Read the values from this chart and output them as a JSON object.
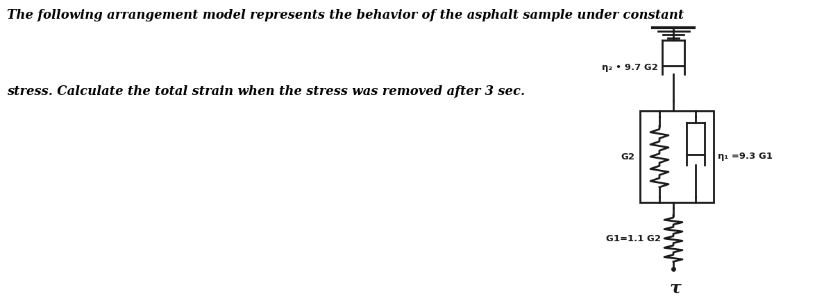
{
  "bg_color": "#ffffff",
  "text_color": "#000000",
  "title_line1": "The following arrangement model represents the behavior of the asphalt sample under constant",
  "title_line2": "stress. Calculate the total strain when the stress was removed after 3 sec.",
  "title_fontsize": 13.0,
  "tau_label": "τ",
  "spring1_label": "G1=1.1 G2",
  "spring2_label": "G2",
  "dashpot1_label": "η₁ =9.3 G1",
  "dashpot2_label": "η₂ • 9.7 G2",
  "line_color": "#1a1a1a",
  "lw": 2.0
}
